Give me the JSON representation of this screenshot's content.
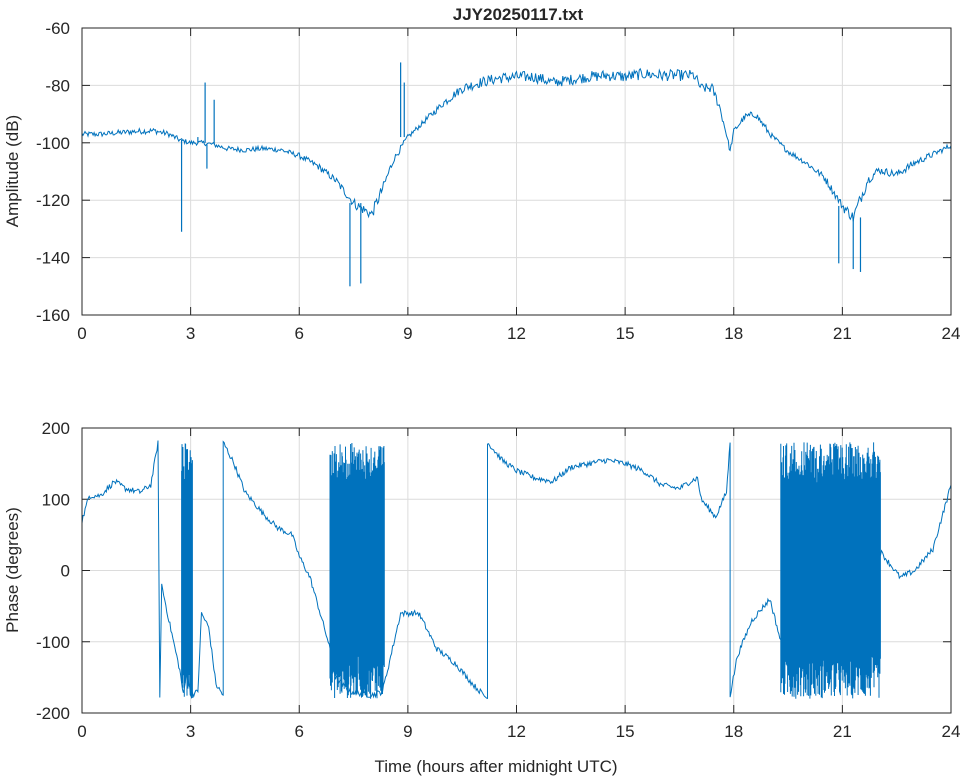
{
  "chart_data": [
    {
      "type": "line",
      "title": "JJY20250117.txt",
      "xlabel": "",
      "ylabel": "Amplitude (dB)",
      "xlim": [
        0,
        24
      ],
      "ylim": [
        -160,
        -60
      ],
      "xticks": [
        "0",
        "3",
        "6",
        "9",
        "12",
        "15",
        "18",
        "21",
        "24"
      ],
      "yticks": [
        "-60",
        "-80",
        "-100",
        "-120",
        "-140",
        "-160"
      ],
      "grid": true,
      "color": "#0072BD",
      "points": [
        [
          0,
          -97
        ],
        [
          0.5,
          -97
        ],
        [
          1,
          -96.5
        ],
        [
          1.5,
          -96
        ],
        [
          2,
          -95.8
        ],
        [
          2.4,
          -97
        ],
        [
          2.7,
          -99
        ],
        [
          3,
          -100
        ],
        [
          3.3,
          -100
        ],
        [
          3.6,
          -100.5
        ],
        [
          4,
          -102
        ],
        [
          4.5,
          -102.5
        ],
        [
          5,
          -102
        ],
        [
          5.5,
          -102.5
        ],
        [
          6,
          -104.5
        ],
        [
          6.5,
          -108
        ],
        [
          7,
          -113
        ],
        [
          7.5,
          -121
        ],
        [
          8,
          -125
        ],
        [
          8.3,
          -116
        ],
        [
          8.6,
          -106
        ],
        [
          9,
          -98
        ],
        [
          9.5,
          -92
        ],
        [
          10,
          -86
        ],
        [
          10.5,
          -81
        ],
        [
          11,
          -79
        ],
        [
          11.5,
          -77.5
        ],
        [
          12,
          -77
        ],
        [
          12.5,
          -77
        ],
        [
          13,
          -79
        ],
        [
          13.5,
          -78
        ],
        [
          14,
          -77
        ],
        [
          14.5,
          -76.5
        ],
        [
          15,
          -77
        ],
        [
          15.5,
          -76
        ],
        [
          16,
          -76.5
        ],
        [
          16.5,
          -76.5
        ],
        [
          16.9,
          -76.5
        ],
        [
          17.1,
          -81
        ],
        [
          17.4,
          -81
        ],
        [
          17.6,
          -87
        ],
        [
          17.8,
          -97
        ],
        [
          17.9,
          -103
        ],
        [
          18,
          -96
        ],
        [
          18.3,
          -91
        ],
        [
          18.6,
          -90
        ],
        [
          19,
          -97
        ],
        [
          19.5,
          -103
        ],
        [
          20,
          -107
        ],
        [
          20.5,
          -112
        ],
        [
          21,
          -122
        ],
        [
          21.3,
          -126
        ],
        [
          21.7,
          -113
        ],
        [
          22,
          -109.5
        ],
        [
          22.5,
          -111
        ],
        [
          23,
          -107
        ],
        [
          23.5,
          -104
        ],
        [
          24,
          -101
        ]
      ],
      "spikes": [
        [
          2.75,
          -131
        ],
        [
          3.2,
          -98
        ],
        [
          3.4,
          -79
        ],
        [
          3.45,
          -109
        ],
        [
          3.65,
          -85
        ],
        [
          7.4,
          -150
        ],
        [
          7.7,
          -149
        ],
        [
          8.8,
          -72
        ],
        [
          8.9,
          -79
        ],
        [
          21.3,
          -144
        ],
        [
          20.9,
          -142
        ],
        [
          21.5,
          -145
        ]
      ]
    },
    {
      "type": "line",
      "title": "",
      "xlabel": "Time (hours after midnight UTC)",
      "ylabel": "Phase (degrees)",
      "xlim": [
        0,
        24
      ],
      "ylim": [
        -200,
        200
      ],
      "xticks": [
        "0",
        "3",
        "6",
        "9",
        "12",
        "15",
        "18",
        "21",
        "24"
      ],
      "yticks": [
        "200",
        "100",
        "0",
        "-100",
        "-200"
      ],
      "grid": true,
      "color": "#0072BD",
      "points": [
        [
          0,
          70
        ],
        [
          0.2,
          105
        ],
        [
          0.5,
          105
        ],
        [
          0.9,
          125
        ],
        [
          1.2,
          115
        ],
        [
          1.6,
          110
        ],
        [
          1.9,
          120
        ],
        [
          2.1,
          180
        ],
        [
          2.15,
          -175
        ],
        [
          2.2,
          -20
        ],
        [
          2.4,
          -70
        ],
        [
          2.7,
          -140
        ],
        [
          2.8,
          -175
        ],
        [
          2.9,
          -140
        ],
        [
          3.0,
          -175
        ],
        [
          3.2,
          -170
        ],
        [
          3.3,
          -60
        ],
        [
          3.5,
          -80
        ],
        [
          3.7,
          -160
        ],
        [
          3.9,
          -175
        ],
        [
          3.9,
          180
        ],
        [
          4.2,
          150
        ],
        [
          4.5,
          110
        ],
        [
          5,
          80
        ],
        [
          5.4,
          60
        ],
        [
          5.8,
          50
        ],
        [
          6,
          20
        ],
        [
          6.3,
          -10
        ],
        [
          6.8,
          -100
        ],
        [
          7,
          -150
        ],
        [
          7.4,
          -170
        ],
        [
          8,
          -175
        ],
        [
          8.3,
          -170
        ],
        [
          8.8,
          -60
        ],
        [
          9.3,
          -60
        ],
        [
          9.8,
          -110
        ],
        [
          10.3,
          -130
        ],
        [
          10.8,
          -160
        ],
        [
          11.2,
          -180
        ],
        [
          11.2,
          180
        ],
        [
          11.6,
          155
        ],
        [
          12,
          140
        ],
        [
          12.5,
          130
        ],
        [
          13,
          125
        ],
        [
          13.5,
          145
        ],
        [
          14,
          150
        ],
        [
          14.5,
          155
        ],
        [
          15,
          150
        ],
        [
          15.5,
          140
        ],
        [
          16,
          120
        ],
        [
          16.5,
          115
        ],
        [
          16.8,
          125
        ],
        [
          17,
          130
        ],
        [
          17.1,
          100
        ],
        [
          17.5,
          75
        ],
        [
          17.8,
          110
        ],
        [
          17.9,
          180
        ],
        [
          17.9,
          -175
        ],
        [
          18.1,
          -120
        ],
        [
          18.5,
          -70
        ],
        [
          19,
          -40
        ],
        [
          19.3,
          -100
        ],
        [
          19.8,
          -80
        ],
        [
          20.3,
          -50
        ],
        [
          21,
          -40
        ],
        [
          21.5,
          -20
        ],
        [
          22,
          30
        ],
        [
          22.3,
          10
        ],
        [
          22.6,
          -10
        ],
        [
          23,
          0
        ],
        [
          23.5,
          30
        ],
        [
          24,
          120
        ]
      ],
      "noise_bands": [
        [
          2.75,
          3.05
        ],
        [
          6.85,
          8.35
        ],
        [
          19.3,
          22.05
        ]
      ]
    }
  ]
}
